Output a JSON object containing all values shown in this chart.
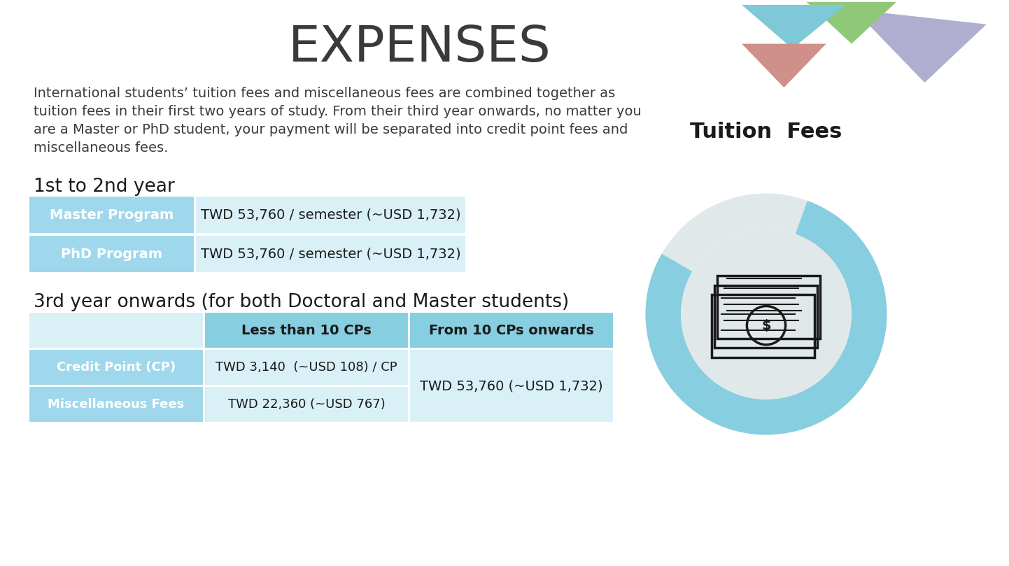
{
  "title": "EXPENSES",
  "title_fontsize": 52,
  "title_color": "#3a3a3a",
  "bg_color": "#ffffff",
  "description_lines": [
    "International students’ tuition fees and miscellaneous fees are combined together as",
    "tuition fees in their first two years of study. From their third year onwards, no matter you",
    "are a Master or PhD student, your payment will be separated into credit point fees and",
    "miscellaneous fees."
  ],
  "desc_fontsize": 14,
  "desc_color": "#3a3a3a",
  "section1_label": "1st to 2nd year",
  "section1_fontsize": 19,
  "section2_label": "3rd year onwards (for both Doctoral and Master students)",
  "section2_fontsize": 19,
  "table1_rows": [
    {
      "label": "Master Program",
      "value": "TWD 53,760 / semester (~USD 1,732)"
    },
    {
      "label": "PhD Program",
      "value": "TWD 53,760 / semester (~USD 1,732)"
    }
  ],
  "table2_headers": [
    "",
    "Less than 10 CPs",
    "From 10 CPs onwards"
  ],
  "table2_rows": [
    {
      "label": "Credit Point (CP)",
      "less": "TWD 3,140  (~USD 108) / CP",
      "more": "TWD 53,760 (~USD 1,732)"
    },
    {
      "label": "Miscellaneous Fees",
      "less": "TWD 22,360 (~USD 767)",
      "more": ""
    }
  ],
  "header_cell_color": "#87cee0",
  "light_cell_color": "#9fd8ec",
  "value_cell_color": "#daf0f7",
  "cell_text_white": "#ffffff",
  "cell_text_dark": "#1a1a1a",
  "header_text_dark": "#1a1a1a",
  "donut_color_main": "#87cee0",
  "donut_color_light": "#e0e8ea",
  "tuition_label": "Tuition  Fees",
  "tuition_fontsize": 22,
  "geo_colors_teal": "#7ec8d8",
  "geo_colors_green": "#90c87a",
  "geo_colors_lavender": "#b0aed0",
  "geo_colors_salmon": "#d0908a"
}
